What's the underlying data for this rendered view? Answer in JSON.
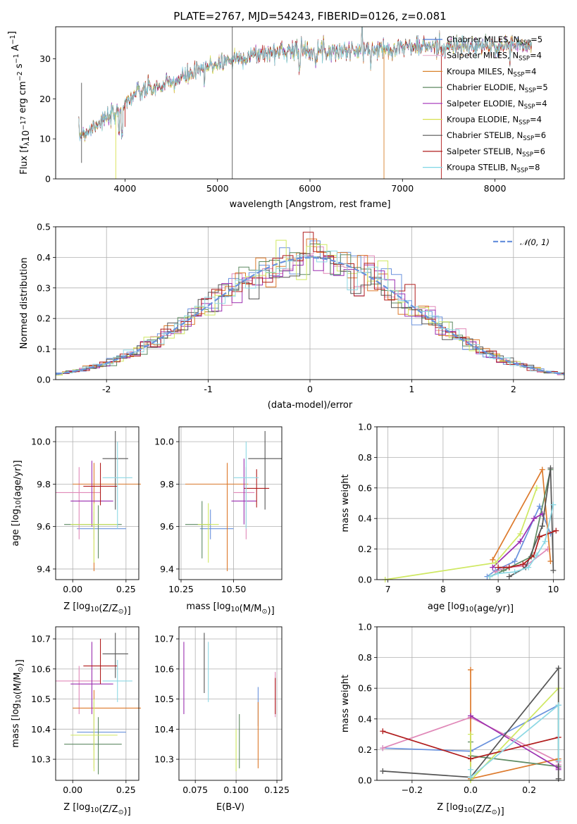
{
  "palette": [
    "#4e7ad6",
    "#e8b0cc",
    "#d9822b",
    "#5e8a62",
    "#a02fb8",
    "#d8e04e",
    "#555555",
    "#b01c1c",
    "#7fd6e6"
  ],
  "fit_palette": [
    "#6a92dd",
    "#e088b8",
    "#dd7a2c",
    "#5e8a62",
    "#9b2fb0",
    "#cfe862",
    "#555555",
    "#b01c1c",
    "#8dd8e4"
  ],
  "chart_data": [
    {
      "type": "line",
      "title": "PLATE=2767, MJD=54243, FIBERID=0126, z=0.081",
      "xlabel": "wavelength [Angstrom, rest frame]",
      "ylabel": "Flux [f",
      "ylabel_sub": "λ",
      "ylabel_rest": "10",
      "ylabel_sup1": "−17",
      "ylabel_rest2": " erg cm",
      "ylabel_sup2": "−2",
      "ylabel_rest3": " s",
      "ylabel_sup3": "−1",
      "ylabel_rest4": " A",
      "ylabel_sup4": "−1",
      "ylabel_end": "]",
      "xlim": [
        3250,
        8750
      ],
      "ylim": [
        0,
        38
      ],
      "xticks": [
        4000,
        5000,
        6000,
        7000,
        8000
      ],
      "yticks": [
        0,
        10,
        20,
        30
      ],
      "spectrum_anchor_points": [
        [
          3500,
          11
        ],
        [
          3600,
          12
        ],
        [
          3700,
          14
        ],
        [
          3800,
          15
        ],
        [
          3900,
          16
        ],
        [
          4000,
          19
        ],
        [
          4100,
          21
        ],
        [
          4200,
          22
        ],
        [
          4400,
          23
        ],
        [
          4600,
          25
        ],
        [
          4800,
          27
        ],
        [
          5000,
          29
        ],
        [
          5200,
          30
        ],
        [
          5400,
          31
        ],
        [
          5600,
          31.5
        ],
        [
          5800,
          32.5
        ],
        [
          6000,
          32
        ],
        [
          6200,
          32
        ],
        [
          6400,
          32
        ],
        [
          6600,
          32
        ],
        [
          6800,
          32.5
        ],
        [
          7000,
          33
        ],
        [
          7200,
          33
        ],
        [
          7400,
          33
        ],
        [
          7600,
          33
        ],
        [
          7800,
          33
        ],
        [
          8000,
          33
        ],
        [
          8200,
          33.5
        ],
        [
          8400,
          33
        ]
      ],
      "legend": {
        "location": "upper right",
        "entries": [
          {
            "name": "Chabrier MILES, N",
            "sub": "SSP",
            "n": "=5"
          },
          {
            "name": "Salpeter MILES, N",
            "sub": "SSP",
            "n": "=4"
          },
          {
            "name": "Kroupa MILES, N",
            "sub": "SSP",
            "n": "=4"
          },
          {
            "name": "Chabrier ELODIE, N",
            "sub": "SSP",
            "n": "=5"
          },
          {
            "name": "Salpeter ELODIE, N",
            "sub": "SSP",
            "n": "=4"
          },
          {
            "name": "Kroupa ELODIE, N",
            "sub": "SSP",
            "n": "=4"
          },
          {
            "name": "Chabrier STELIB, N",
            "sub": "SSP",
            "n": "=6"
          },
          {
            "name": "Salpeter STELIB, N",
            "sub": "SSP",
            "n": "=6"
          },
          {
            "name": "Kroupa STELIB, N",
            "sub": "SSP",
            "n": "=8"
          }
        ]
      }
    },
    {
      "type": "histogram",
      "xlabel": "(data-model)/error",
      "ylabel": "Normed distribution",
      "xlim": [
        -2.5,
        2.5
      ],
      "ylim": [
        0,
        0.5
      ],
      "xticks": [
        -2,
        -1,
        0,
        1,
        2
      ],
      "yticks": [
        0.0,
        0.1,
        0.2,
        0.3,
        0.4,
        0.5
      ],
      "bin_width": 0.1,
      "grid": true,
      "reference_curve": {
        "name": "𝒩(0, 1)",
        "mean": 0,
        "sigma": 1,
        "style": "dashed"
      },
      "legend_location": "upper right"
    },
    {
      "type": "errorbar",
      "xlabel": "Z [log",
      "xlabel_sub": "10",
      "xlabel_rest": "(Z/Z",
      "xlabel_sub2": "⊙",
      "xlabel_end": ")]",
      "ylabel": "age  [log",
      "ylabel_sub": "10",
      "ylabel_end": "(age/yr)]",
      "xlim": [
        -0.08,
        0.31
      ],
      "ylim": [
        9.35,
        10.07
      ],
      "xticks": [
        0.0,
        0.25
      ],
      "xtick_labels": [
        "0.00",
        "0.25"
      ],
      "yticks": [
        9.4,
        9.6,
        9.8,
        10.0
      ],
      "points": [
        {
          "x": 0.1,
          "y": 9.59,
          "xerr": [
            0.08,
            0.15
          ],
          "yerr": [
            0.05,
            0.08
          ]
        },
        {
          "x": 0.03,
          "y": 9.76,
          "xerr": [
            0.11,
            0.1
          ],
          "yerr": [
            0.22,
            0.12
          ]
        },
        {
          "x": 0.1,
          "y": 9.8,
          "xerr": [
            0.1,
            0.22
          ],
          "yerr": [
            0.41,
            0.1
          ]
        },
        {
          "x": 0.12,
          "y": 9.61,
          "xerr": [
            0.16,
            0.11
          ],
          "yerr": [
            0.16,
            0.09
          ]
        },
        {
          "x": 0.09,
          "y": 9.72,
          "xerr": [
            0.1,
            0.1
          ],
          "yerr": [
            0.12,
            0.19
          ]
        },
        {
          "x": 0.1,
          "y": 9.61,
          "xerr": [
            0.11,
            0.11
          ],
          "yerr": [
            0.18,
            0.1
          ]
        },
        {
          "x": 0.2,
          "y": 9.92,
          "xerr": [
            0.06,
            0.06
          ],
          "yerr": [
            0.24,
            0.13
          ]
        },
        {
          "x": 0.13,
          "y": 9.79,
          "xerr": [
            0.08,
            0.08
          ],
          "yerr": [
            0.09,
            0.11
          ]
        },
        {
          "x": 0.21,
          "y": 9.83,
          "xerr": [
            0.07,
            0.07
          ],
          "yerr": [
            0.24,
            0.17
          ]
        }
      ]
    },
    {
      "type": "errorbar",
      "xlabel": "mass [log",
      "xlabel_sub": "10",
      "xlabel_rest": "(M/M",
      "xlabel_sub2": "⊙",
      "xlabel_end": ")]",
      "xlim": [
        10.24,
        10.73
      ],
      "ylim": [
        9.35,
        10.07
      ],
      "xticks": [
        10.25,
        10.5
      ],
      "xtick_labels": [
        "10.25",
        "10.50"
      ],
      "yticks": [
        9.4,
        9.6,
        9.8,
        10.0
      ],
      "points": [
        {
          "x": 10.39,
          "y": 9.59,
          "xerr": [
            0.05,
            0.11
          ],
          "yerr": [
            0.05,
            0.09
          ]
        },
        {
          "x": 10.56,
          "y": 9.76,
          "xerr": [
            0.06,
            0.04
          ],
          "yerr": [
            0.22,
            0.12
          ]
        },
        {
          "x": 10.47,
          "y": 9.8,
          "xerr": [
            0.2,
            0.1
          ],
          "yerr": [
            0.41,
            0.1
          ]
        },
        {
          "x": 10.35,
          "y": 9.61,
          "xerr": [
            0.08,
            0.04
          ],
          "yerr": [
            0.16,
            0.11
          ]
        },
        {
          "x": 10.55,
          "y": 9.72,
          "xerr": [
            0.06,
            0.06
          ],
          "yerr": [
            0.11,
            0.2
          ]
        },
        {
          "x": 10.38,
          "y": 9.61,
          "xerr": [
            0.05,
            0.05
          ],
          "yerr": [
            0.18,
            0.1
          ]
        },
        {
          "x": 10.65,
          "y": 9.92,
          "xerr": [
            0.08,
            0.08
          ],
          "yerr": [
            0.24,
            0.13
          ]
        },
        {
          "x": 10.61,
          "y": 9.78,
          "xerr": [
            0.06,
            0.06
          ],
          "yerr": [
            0.09,
            0.09
          ]
        },
        {
          "x": 10.56,
          "y": 9.83,
          "xerr": [
            0.06,
            0.06
          ],
          "yerr": [
            0.24,
            0.17
          ]
        }
      ]
    },
    {
      "type": "line",
      "xlabel": "age  [log",
      "xlabel_sub": "10",
      "xlabel_end": "(age/yr)]",
      "ylabel": "mass weight",
      "xlim": [
        6.8,
        10.2
      ],
      "ylim": [
        0.0,
        1.0
      ],
      "xticks": [
        7,
        8,
        9,
        10
      ],
      "yticks": [
        0.0,
        0.2,
        0.4,
        0.6,
        0.8,
        1.0
      ],
      "grid": true,
      "series": [
        {
          "x": [
            8.8,
            8.95,
            9.3,
            9.75,
            9.95
          ],
          "y": [
            0.02,
            0.06,
            0.12,
            0.48,
            0.3
          ]
        },
        {
          "x": [
            8.95,
            9.15,
            9.5,
            9.9
          ],
          "y": [
            0.05,
            0.08,
            0.09,
            0.2
          ]
        },
        {
          "x": [
            8.9,
            9.8,
            9.95
          ],
          "y": [
            0.13,
            0.72,
            0.12
          ]
        },
        {
          "x": [
            8.85,
            9.1,
            9.6,
            9.95
          ],
          "y": [
            0.02,
            0.06,
            0.15,
            0.72
          ]
        },
        {
          "x": [
            8.9,
            9.4,
            9.65,
            9.8
          ],
          "y": [
            0.08,
            0.25,
            0.4,
            0.43
          ]
        },
        {
          "x": [
            6.95,
            8.95,
            9.4,
            9.7
          ],
          "y": [
            0.0,
            0.11,
            0.3,
            0.6
          ]
        },
        {
          "x": [
            9.2,
            9.5,
            9.8,
            9.95,
            10.0
          ],
          "y": [
            0.02,
            0.08,
            0.35,
            0.73,
            0.06
          ]
        },
        {
          "x": [
            9.0,
            9.2,
            9.45,
            9.65,
            9.75,
            10.05
          ],
          "y": [
            0.08,
            0.08,
            0.1,
            0.16,
            0.28,
            0.32
          ]
        },
        {
          "x": [
            8.85,
            9.0,
            9.3,
            9.55,
            9.7,
            9.85,
            10.0
          ],
          "y": [
            0.02,
            0.04,
            0.05,
            0.08,
            0.16,
            0.25,
            0.49
          ]
        }
      ]
    },
    {
      "type": "errorbar",
      "xlabel": "Z [log",
      "xlabel_sub": "10",
      "xlabel_rest": "(Z/Z",
      "xlabel_sub2": "⊙",
      "xlabel_end": ")]",
      "ylabel": "mass [log",
      "ylabel_sub": "10",
      "ylabel_rest": "(M/M",
      "ylabel_sub2": "⊙",
      "ylabel_end": ")]",
      "xlim": [
        -0.08,
        0.31
      ],
      "ylim": [
        10.23,
        10.74
      ],
      "xticks": [
        0.0,
        0.25
      ],
      "xtick_labels": [
        "0.00",
        "0.25"
      ],
      "yticks": [
        10.3,
        10.4,
        10.5,
        10.6,
        10.7
      ],
      "points": [
        {
          "x": 0.1,
          "y": 10.39,
          "xerr": [
            0.08,
            0.15
          ],
          "yerr": [
            0.06,
            0.1
          ]
        },
        {
          "x": 0.03,
          "y": 10.56,
          "xerr": [
            0.11,
            0.1
          ],
          "yerr": [
            0.11,
            0.05
          ]
        },
        {
          "x": 0.1,
          "y": 10.47,
          "xerr": [
            0.1,
            0.22
          ],
          "yerr": [
            0.2,
            0.06
          ]
        },
        {
          "x": 0.12,
          "y": 10.35,
          "xerr": [
            0.16,
            0.11
          ],
          "yerr": [
            0.1,
            0.09
          ]
        },
        {
          "x": 0.09,
          "y": 10.55,
          "xerr": [
            0.1,
            0.1
          ],
          "yerr": [
            0.1,
            0.14
          ]
        },
        {
          "x": 0.1,
          "y": 10.38,
          "xerr": [
            0.11,
            0.11
          ],
          "yerr": [
            0.12,
            0.12
          ]
        },
        {
          "x": 0.2,
          "y": 10.65,
          "xerr": [
            0.06,
            0.06
          ],
          "yerr": [
            0.08,
            0.07
          ]
        },
        {
          "x": 0.13,
          "y": 10.61,
          "xerr": [
            0.08,
            0.08
          ],
          "yerr": [
            0.06,
            0.09
          ]
        },
        {
          "x": 0.21,
          "y": 10.56,
          "xerr": [
            0.07,
            0.07
          ],
          "yerr": [
            0.07,
            0.07
          ]
        }
      ]
    },
    {
      "type": "errorbar",
      "xlabel": "E(B-V)",
      "xlim": [
        0.065,
        0.128
      ],
      "ylim": [
        10.23,
        10.74
      ],
      "xticks": [
        0.075,
        0.1,
        0.125
      ],
      "xtick_labels": [
        "0.075",
        "0.100",
        "0.125"
      ],
      "yticks": [
        10.3,
        10.4,
        10.5,
        10.6,
        10.7
      ],
      "points": [
        {
          "x": 0.1135,
          "y": 10.48,
          "yerr": [
            0.07,
            0.06
          ]
        },
        {
          "x": 0.124,
          "y": 10.52,
          "yerr": [
            0.08,
            0.07
          ]
        },
        {
          "x": 0.1135,
          "y": 10.41,
          "yerr": [
            0.14,
            0.08
          ]
        },
        {
          "x": 0.102,
          "y": 10.38,
          "yerr": [
            0.11,
            0.07
          ]
        },
        {
          "x": 0.068,
          "y": 10.57,
          "yerr": [
            0.12,
            0.12
          ]
        },
        {
          "x": 0.1,
          "y": 10.33,
          "yerr": [
            0.07,
            0.07
          ]
        },
        {
          "x": 0.0805,
          "y": 10.62,
          "yerr": [
            0.1,
            0.1
          ]
        },
        {
          "x": 0.124,
          "y": 10.51,
          "yerr": [
            0.06,
            0.06
          ]
        },
        {
          "x": 0.083,
          "y": 10.59,
          "yerr": [
            0.1,
            0.1
          ]
        }
      ]
    },
    {
      "type": "line",
      "xlabel": "Z [log",
      "xlabel_sub": "10",
      "xlabel_rest": "(Z/Z",
      "xlabel_sub2": "⊙",
      "xlabel_end": ")]",
      "ylabel": "mass weight",
      "xlim": [
        -0.32,
        0.32
      ],
      "ylim": [
        0.0,
        1.0
      ],
      "xticks": [
        -0.2,
        0.0,
        0.2
      ],
      "xtick_labels": [
        "−0.2",
        "0.0",
        "0.2"
      ],
      "yticks": [
        0.0,
        0.2,
        0.4,
        0.6,
        0.8,
        1.0
      ],
      "grid": true,
      "series": [
        {
          "x": [
            -0.3,
            0.0,
            0.3,
            0.3
          ],
          "y": [
            0.21,
            0.19,
            0.49,
            0.1
          ]
        },
        {
          "x": [
            -0.3,
            0.0,
            0.3,
            0.3
          ],
          "y": [
            0.21,
            0.41,
            0.12,
            0.1
          ]
        },
        {
          "x": [
            0.0,
            0.0,
            0.3
          ],
          "y": [
            0.72,
            0.01,
            0.14
          ]
        },
        {
          "x": [
            0.0,
            0.0,
            0.3
          ],
          "y": [
            0.25,
            0.16,
            0.09
          ]
        },
        {
          "x": [
            0.0,
            0.3,
            0.3
          ],
          "y": [
            0.42,
            0.08,
            0.07
          ]
        },
        {
          "x": [
            0.0,
            0.0,
            0.3,
            0.3
          ],
          "y": [
            0.3,
            0.0,
            0.6,
            0.13
          ]
        },
        {
          "x": [
            -0.3,
            0.0,
            0.3,
            0.3
          ],
          "y": [
            0.06,
            0.02,
            0.73,
            0.01
          ]
        },
        {
          "x": [
            -0.3,
            0.0,
            0.3
          ],
          "y": [
            0.32,
            0.14,
            0.28
          ]
        },
        {
          "x": [
            0.0,
            0.0,
            0.3,
            0.3
          ],
          "y": [
            0.07,
            0.02,
            0.49,
            0.13
          ]
        }
      ]
    }
  ]
}
